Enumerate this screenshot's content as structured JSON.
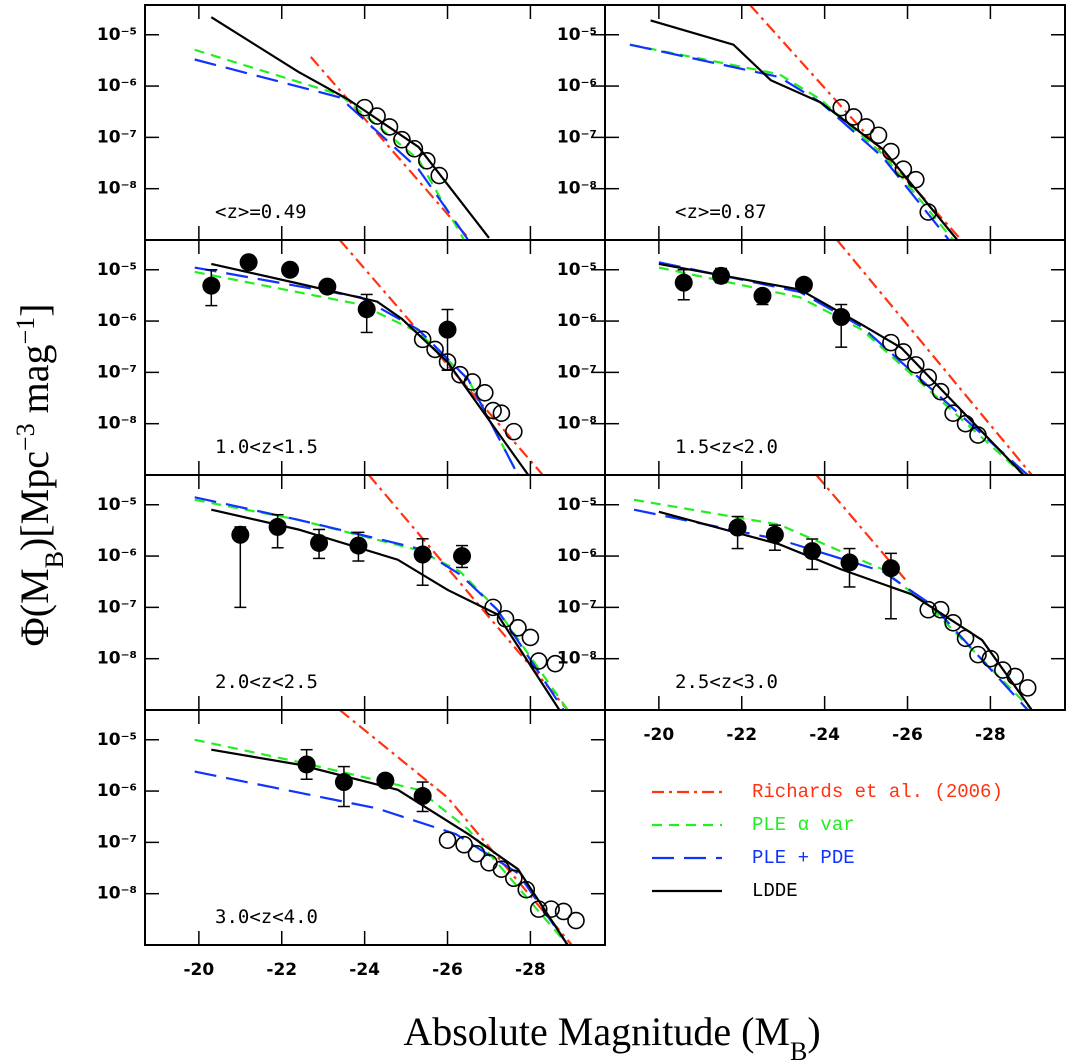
{
  "chart_data": [
    {
      "type": "line",
      "label": "<z>=0.49",
      "ylabel": [
        "Φ(M",
        "B",
        ")[Mpc",
        "−3",
        " mag",
        "−1",
        "]"
      ],
      "xlabel": [
        "Absolute Magnitude (M",
        "B",
        ")"
      ],
      "xlim": [
        -18.7,
        -29.8
      ],
      "xticks": [
        -20,
        -22,
        -24,
        -26,
        -28
      ],
      "ylim": [
        1e-09,
        3.8e-05
      ],
      "log_y": true,
      "yticks": [
        {
          "value": 1e-05,
          "label": "10⁻⁵"
        },
        {
          "value": 1e-06,
          "label": "10⁻⁶"
        },
        {
          "value": 1e-07,
          "label": "10⁻⁷"
        },
        {
          "value": 1e-08,
          "label": "10⁻⁸"
        }
      ],
      "series": [
        {
          "name": "Richards et al. (2006)",
          "color": "#ff3311",
          "style": "dashdot",
          "x": [
            -22.7,
            -26.5
          ],
          "values": [
            3.7e-06,
            1.1e-09
          ]
        },
        {
          "name": "PLE α var",
          "color": "#22ee22",
          "style": "shortdash",
          "x": [
            -19.9,
            -23.4,
            -25.3,
            -26.4
          ],
          "values": [
            5.1e-06,
            6.8e-07,
            3.7e-08,
            1e-09
          ]
        },
        {
          "name": "PLE + PDE",
          "color": "#1133ff",
          "style": "longdash",
          "x": [
            -19.9,
            -23.4,
            -25.3,
            -26.5
          ],
          "values": [
            3.3e-06,
            6e-07,
            2.4e-08,
            1e-09
          ]
        },
        {
          "name": "LDDE",
          "color": "#000000",
          "style": "solid",
          "x": [
            -20.3,
            -22.4,
            -23.6,
            -25.3,
            -27.0
          ],
          "values": [
            2.2e-05,
            1.9e-06,
            5.5e-07,
            6.5e-08,
            1.1e-09
          ]
        }
      ],
      "open_points": {
        "x": [
          -24.0,
          -24.3,
          -24.6,
          -24.9,
          -25.2,
          -25.5,
          -25.8
        ],
        "values": [
          3.8e-07,
          2.6e-07,
          1.6e-07,
          9e-08,
          6e-08,
          3.5e-08,
          1.8e-08
        ]
      }
    },
    {
      "type": "line",
      "label": "<z>=0.87",
      "xlim": [
        -18.7,
        -29.8
      ],
      "xticks": [
        -20,
        -22,
        -24,
        -26,
        -28
      ],
      "ylim": [
        1e-09,
        3.8e-05
      ],
      "log_y": true,
      "yticks": [
        {
          "value": 1e-05,
          "label": "10⁻⁵"
        },
        {
          "value": 1e-06,
          "label": "10⁻⁶"
        },
        {
          "value": 1e-07,
          "label": "10⁻⁷"
        },
        {
          "value": 1e-08,
          "label": "10⁻⁸"
        }
      ],
      "series": [
        {
          "color": "#ff3311",
          "style": "dashdot",
          "x": [
            -22.2,
            -27.3
          ],
          "values": [
            3.8e-05,
            1e-09
          ]
        },
        {
          "color": "#22ee22",
          "style": "shortdash",
          "x": [
            -19.3,
            -22.9,
            -23.9,
            -25.4,
            -27.1
          ],
          "values": [
            6.4e-06,
            1.7e-06,
            5.5e-07,
            4.7e-08,
            1e-09
          ]
        },
        {
          "color": "#1133ff",
          "style": "longdash",
          "x": [
            -19.3,
            -22.9,
            -23.9,
            -25.4,
            -27.0
          ],
          "values": [
            6.4e-06,
            1.5e-06,
            4.8e-07,
            4.1e-08,
            1e-09
          ]
        },
        {
          "color": "#000000",
          "style": "solid",
          "x": [
            -19.8,
            -21.8,
            -22.7,
            -23.9,
            -25.4,
            -27.2
          ],
          "values": [
            1.9e-05,
            6.4e-06,
            1.3e-06,
            4.8e-07,
            5.9e-08,
            1e-09
          ]
        }
      ],
      "open_points": {
        "x": [
          -24.4,
          -24.7,
          -25.0,
          -25.3,
          -25.6,
          -25.9,
          -26.2,
          -26.5
        ],
        "values": [
          3.8e-07,
          2.5e-07,
          1.6e-07,
          1.1e-07,
          5.3e-08,
          2.4e-08,
          1.5e-08,
          3.5e-09
        ]
      }
    },
    {
      "type": "line",
      "label": "1.0<z<1.5",
      "xlim": [
        -18.7,
        -29.8
      ],
      "xticks": [
        -20,
        -22,
        -24,
        -26,
        -28
      ],
      "ylim": [
        1e-09,
        3.8e-05
      ],
      "log_y": true,
      "yticks": [
        {
          "value": 1e-05,
          "label": "10⁻⁵"
        },
        {
          "value": 1e-06,
          "label": "10⁻⁶"
        },
        {
          "value": 1e-07,
          "label": "10⁻⁷"
        },
        {
          "value": 1e-08,
          "label": "10⁻⁸"
        }
      ],
      "series": [
        {
          "color": "#ff3311",
          "style": "dashdot",
          "x": [
            -23.4,
            -28.3
          ],
          "values": [
            3.8e-05,
            1e-09
          ]
        },
        {
          "color": "#22ee22",
          "style": "shortdash",
          "x": [
            -19.9,
            -23.9,
            -25.3,
            -26.5,
            -27.7
          ],
          "values": [
            9.1e-06,
            2.1e-06,
            6e-07,
            7.3e-08,
            1e-09
          ]
        },
        {
          "color": "#1133ff",
          "style": "longdash",
          "x": [
            -19.9,
            -23.9,
            -25.3,
            -26.5,
            -27.7
          ],
          "values": [
            1.1e-05,
            2.9e-06,
            6.8e-07,
            7.3e-08,
            1e-09
          ]
        },
        {
          "color": "#000000",
          "style": "solid",
          "x": [
            -20.3,
            -22.4,
            -24.3,
            -24.9,
            -26.0,
            -27.95
          ],
          "values": [
            1.3e-05,
            5.4e-06,
            2.4e-06,
            1.1e-06,
            1.6e-07,
            1e-09
          ]
        }
      ],
      "open_points": {
        "x": [
          -25.4,
          -25.7,
          -26.0,
          -26.3,
          -26.6,
          -26.9,
          -27.1,
          -27.3,
          -27.6
        ],
        "values": [
          4.4e-07,
          2.8e-07,
          1.6e-07,
          9e-08,
          6.5e-08,
          4e-08,
          1.8e-08,
          1.6e-08,
          7e-09
        ]
      },
      "filled_points": {
        "x": [
          -20.3,
          -21.2,
          -22.2,
          -23.1,
          -24.05,
          -26.0
        ],
        "values": [
          4.9e-06,
          1.4e-05,
          1e-05,
          4.7e-06,
          1.7e-06,
          6.8e-07
        ],
        "yerr_low": [
          2.9e-06,
          2e-06,
          1.5e-06,
          8e-07,
          1.1e-06,
          5.7e-07
        ],
        "yerr_high": [
          5.1e-06,
          2e-06,
          1.5e-06,
          8e-07,
          1.6e-06,
          1e-06
        ]
      }
    },
    {
      "type": "line",
      "label": "1.5<z<2.0",
      "xlim": [
        -18.7,
        -29.8
      ],
      "xticks": [
        -20,
        -22,
        -24,
        -26,
        -28
      ],
      "ylim": [
        1e-09,
        3.8e-05
      ],
      "log_y": true,
      "yticks": [
        {
          "value": 1e-05,
          "label": "10⁻⁵"
        },
        {
          "value": 1e-06,
          "label": "10⁻⁶"
        },
        {
          "value": 1e-07,
          "label": "10⁻⁷"
        },
        {
          "value": 1e-08,
          "label": "10⁻⁸"
        }
      ],
      "series": [
        {
          "color": "#ff3311",
          "style": "dashdot",
          "x": [
            -24.3,
            -29.0
          ],
          "values": [
            3.8e-05,
            1e-09
          ]
        },
        {
          "color": "#22ee22",
          "style": "shortdash",
          "x": [
            -20.0,
            -23.4,
            -24.9,
            -28.8
          ],
          "values": [
            1.1e-05,
            2.9e-06,
            6.8e-07,
            1e-09
          ]
        },
        {
          "color": "#1133ff",
          "style": "longdash",
          "x": [
            -20.0,
            -23.4,
            -24.9,
            -28.9
          ],
          "values": [
            1.4e-05,
            3.7e-06,
            7.7e-07,
            1e-09
          ]
        },
        {
          "color": "#000000",
          "style": "solid",
          "x": [
            -20.0,
            -23.4,
            -24.9,
            -25.85,
            -28.8
          ],
          "values": [
            1.3e-05,
            4.1e-06,
            8.5e-07,
            3e-07,
            1e-09
          ]
        }
      ],
      "open_points": {
        "x": [
          -25.6,
          -25.9,
          -26.2,
          -26.5,
          -26.8,
          -27.1,
          -27.4,
          -27.7
        ],
        "values": [
          3.8e-07,
          2.5e-07,
          1.4e-07,
          8e-08,
          4.2e-08,
          1.6e-08,
          1e-08,
          6e-09
        ]
      },
      "filled_points": {
        "x": [
          -20.6,
          -21.5,
          -22.5,
          -23.5,
          -24.4
        ],
        "values": [
          5.6e-06,
          7.6e-06,
          3.1e-06,
          5.1e-06,
          1.2e-06
        ],
        "yerr_low": [
          3e-06,
          2e-06,
          1e-06,
          1e-06,
          8.9e-07
        ],
        "yerr_high": [
          4.4e-06,
          3e-06,
          1e-06,
          1e-06,
          9e-07
        ]
      }
    },
    {
      "type": "line",
      "label": "2.0<z<2.5",
      "xlim": [
        -18.7,
        -29.8
      ],
      "xticks": [
        -20,
        -22,
        -24,
        -26,
        -28
      ],
      "ylim": [
        1e-09,
        3.8e-05
      ],
      "log_y": true,
      "yticks": [
        {
          "value": 1e-05,
          "label": "10⁻⁵"
        },
        {
          "value": 1e-06,
          "label": "10⁻⁶"
        },
        {
          "value": 1e-07,
          "label": "10⁻⁷"
        },
        {
          "value": 1e-08,
          "label": "10⁻⁸"
        }
      ],
      "series": [
        {
          "color": "#ff3311",
          "style": "dashdot",
          "x": [
            -24.1,
            -28.9
          ],
          "values": [
            3.8e-05,
            1e-09
          ]
        },
        {
          "color": "#22ee22",
          "style": "shortdash",
          "x": [
            -19.9,
            -22.4,
            -25.3,
            -26.3,
            -27.2,
            -28.9
          ],
          "values": [
            1.25e-05,
            5.1e-06,
            1.3e-06,
            5e-07,
            9e-08,
            1e-09
          ]
        },
        {
          "color": "#1133ff",
          "style": "longdash",
          "x": [
            -19.9,
            -22.4,
            -25.3,
            -26.3,
            -27.2,
            -28.8
          ],
          "values": [
            1.4e-05,
            5.1e-06,
            1.4e-06,
            4.4e-07,
            9e-08,
            1e-09
          ]
        },
        {
          "color": "#000000",
          "style": "solid",
          "x": [
            -20.3,
            -22.4,
            -24.8,
            -26.0,
            -27.2,
            -28.7
          ],
          "values": [
            8e-06,
            3.3e-06,
            8.5e-07,
            2.2e-07,
            7.3e-08,
            1e-09
          ]
        }
      ],
      "open_points": {
        "x": [
          -27.1,
          -27.4,
          -27.7,
          -28.0,
          -28.2,
          -28.6
        ],
        "values": [
          1e-07,
          6e-08,
          4e-08,
          2.6e-08,
          9e-09,
          8e-09
        ]
      },
      "filled_points": {
        "x": [
          -21.0,
          -21.9,
          -22.9,
          -23.85,
          -25.4,
          -26.35
        ],
        "values": [
          2.6e-06,
          3.7e-06,
          1.8e-06,
          1.6e-06,
          1.07e-06,
          1e-06
        ],
        "yerr_low": [
          2.5e-06,
          2.25e-06,
          9e-07,
          8e-07,
          8e-07,
          4e-07
        ],
        "yerr_high": [
          1.1e-06,
          2.7e-06,
          1.5e-06,
          1.3e-06,
          1.1e-06,
          6e-07
        ]
      }
    },
    {
      "type": "line",
      "label": "2.5<z<3.0",
      "xlim": [
        -18.7,
        -29.8
      ],
      "xticks": [
        -20,
        -22,
        -24,
        -26,
        -28
      ],
      "ylim": [
        1e-09,
        3.8e-05
      ],
      "log_y": true,
      "yticks": [
        {
          "value": 1e-05,
          "label": "10⁻⁵"
        },
        {
          "value": 1e-06,
          "label": "10⁻⁶"
        },
        {
          "value": 1e-07,
          "label": "10⁻⁷"
        },
        {
          "value": 1e-08,
          "label": "10⁻⁸"
        }
      ],
      "series": [
        {
          "color": "#ff3311",
          "style": "dashdot",
          "x": [
            -23.8,
            -26.0
          ],
          "values": [
            3.8e-05,
            3.1e-07
          ]
        },
        {
          "color": "#22ee22",
          "style": "shortdash",
          "x": [
            -19.4,
            -22.9,
            -25.4,
            -26.6,
            -29.0
          ],
          "values": [
            1.25e-05,
            4.1e-06,
            5.5e-07,
            9.2e-08,
            1e-09
          ]
        },
        {
          "color": "#1133ff",
          "style": "longdash",
          "x": [
            -19.4,
            -22.9,
            -25.4,
            -26.6,
            -28.9
          ],
          "values": [
            8e-06,
            2.1e-06,
            5e-07,
            1.1e-07,
            1e-09
          ]
        },
        {
          "color": "#000000",
          "style": "solid",
          "x": [
            -20.0,
            -22.9,
            -24.4,
            -26.1,
            -27.8,
            -29.0
          ],
          "values": [
            7.3e-06,
            1.7e-06,
            5.5e-07,
            1.8e-07,
            2.3e-08,
            1e-09
          ]
        }
      ],
      "open_points": {
        "x": [
          -26.5,
          -26.8,
          -27.1,
          -27.4,
          -27.7,
          -28.0,
          -28.3,
          -28.6,
          -28.9
        ],
        "values": [
          9e-08,
          9e-08,
          5e-08,
          2.5e-08,
          1.2e-08,
          1e-08,
          6e-09,
          4.5e-09,
          2.7e-09
        ]
      },
      "filled_points": {
        "x": [
          -21.9,
          -22.8,
          -23.7,
          -24.6,
          -25.6
        ],
        "values": [
          3.6e-06,
          2.6e-06,
          1.25e-06,
          7.5e-07,
          5.8e-07
        ],
        "yerr_low": [
          2.2e-06,
          1.3e-06,
          7e-07,
          5e-07,
          5.2e-07
        ],
        "yerr_high": [
          2.3e-06,
          1.4e-06,
          9e-07,
          6.5e-07,
          5.5e-07
        ]
      }
    },
    {
      "type": "line",
      "label": "3.0<z<4.0",
      "xlim": [
        -18.7,
        -29.8
      ],
      "xticks": [
        -20,
        -22,
        -24,
        -26,
        -28
      ],
      "ylim": [
        1e-09,
        3.8e-05
      ],
      "log_y": true,
      "yticks": [
        {
          "value": 1e-05,
          "label": "10⁻⁵"
        },
        {
          "value": 1e-06,
          "label": "10⁻⁶"
        },
        {
          "value": 1e-07,
          "label": "10⁻⁷"
        },
        {
          "value": 1e-08,
          "label": "10⁻⁸"
        }
      ],
      "series": [
        {
          "color": "#ff3311",
          "style": "dashdot",
          "x": [
            -23.4,
            -26.0,
            -29.0
          ],
          "values": [
            3.8e-05,
            7.5e-07,
            1e-09
          ]
        },
        {
          "color": "#22ee22",
          "style": "shortdash",
          "x": [
            -19.9,
            -22.4,
            -25.3,
            -26.5,
            -28.9
          ],
          "values": [
            1e-05,
            3.7e-06,
            1.06e-06,
            1.8e-07,
            1e-09
          ]
        },
        {
          "color": "#1133ff",
          "style": "longdash",
          "x": [
            -19.9,
            -24.3,
            -26.2,
            -27.7,
            -28.9
          ],
          "values": [
            2.4e-06,
            4.6e-07,
            1.45e-07,
            2.5e-08,
            1e-09
          ]
        },
        {
          "color": "#000000",
          "style": "solid",
          "x": [
            -20.3,
            -22.4,
            -24.8,
            -26.5,
            -27.7,
            -28.9
          ],
          "values": [
            6.4e-06,
            3.3e-06,
            1.06e-06,
            1.45e-07,
            3e-08,
            1e-09
          ]
        }
      ],
      "open_points": {
        "x": [
          -26.0,
          -26.4,
          -26.7,
          -27.0,
          -27.3,
          -27.6,
          -27.9,
          -28.2,
          -28.5,
          -28.8,
          -29.1
        ],
        "values": [
          1.1e-07,
          9e-08,
          6e-08,
          4e-08,
          3e-08,
          2e-08,
          1.2e-08,
          5e-09,
          5e-09,
          4.5e-09,
          3e-09
        ]
      },
      "filled_points": {
        "x": [
          -22.6,
          -23.5,
          -24.5,
          -25.4
        ],
        "values": [
          3.3e-06,
          1.5e-06,
          1.6e-06,
          8e-07
        ],
        "yerr_low": [
          1.6e-06,
          1e-06,
          3e-07,
          4e-07
        ],
        "yerr_high": [
          3.1e-06,
          1.5e-06,
          3e-07,
          7e-07
        ]
      }
    }
  ]
}
